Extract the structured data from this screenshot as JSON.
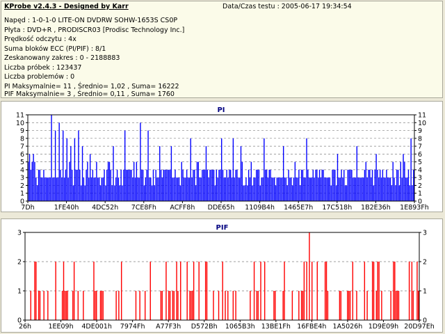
{
  "header": {
    "title": "KProbe v2.4.3 - Designed by Karr",
    "date_label": "Data/Czas testu : 2005-06-17 19:34:54"
  },
  "info_lines": [
    "Napęd : 1-0-1-0 LITE-ON DVDRW SOHW-1653S CS0P",
    "Płyta : DVD+R , PRODISCR03 [Prodisc Technology Inc.]",
    "Prędkość odczytu : 4x",
    "Suma bloków ECC (PI/PIF) : 8/1",
    "Zeskanowany zakres : 0 - 2188883",
    "Liczba próbek : 123437",
    "Liczba problemów : 0",
    "PI Maksymalnie= 11 , Średnio= 1,02 , Suma= 16222",
    "PIF Maksymalnie= 3 , Średnio= 0,11 , Suma= 1760"
  ],
  "colors": {
    "pi": "#0000ff",
    "pif": "#ff0000",
    "frame": "#000000",
    "grid": "#808080"
  },
  "chart_data": [
    {
      "type": "bar",
      "title": "PI",
      "ylim": [
        0,
        11
      ],
      "yticks": [
        0,
        1,
        2,
        3,
        4,
        5,
        6,
        7,
        8,
        9,
        10,
        11
      ],
      "xtick_labels": [
        "7Dh",
        "1FE40h",
        "4DC52h",
        "7CE8Fh",
        "ACFF8h",
        "DDE65h",
        "1109B4h",
        "1465E7h",
        "17C518h",
        "1B2E36h",
        "1E893Fh"
      ],
      "grid": true,
      "base_level": 3,
      "seed": 7,
      "spikes": [
        [
          0.06,
          11
        ],
        [
          0.07,
          9
        ],
        [
          0.08,
          10
        ],
        [
          0.09,
          9
        ],
        [
          0.1,
          8
        ],
        [
          0.11,
          7
        ],
        [
          0.12,
          8
        ],
        [
          0.13,
          9
        ],
        [
          0.14,
          7
        ],
        [
          0.16,
          6
        ],
        [
          0.22,
          7
        ],
        [
          0.25,
          9
        ],
        [
          0.29,
          10
        ],
        [
          0.31,
          9
        ],
        [
          0.34,
          7
        ],
        [
          0.37,
          7
        ],
        [
          0.42,
          8
        ],
        [
          0.46,
          7
        ],
        [
          0.5,
          8
        ],
        [
          0.53,
          8
        ],
        [
          0.55,
          7
        ],
        [
          0.61,
          8
        ],
        [
          0.66,
          7
        ],
        [
          0.72,
          8
        ],
        [
          0.8,
          6
        ],
        [
          0.85,
          7
        ],
        [
          0.9,
          6
        ],
        [
          0.97,
          6
        ],
        [
          0.99,
          8
        ]
      ]
    },
    {
      "type": "bar",
      "title": "PIF",
      "ylim": [
        0,
        3
      ],
      "yticks": [
        0,
        1,
        2,
        3
      ],
      "xtick_labels": [
        "26h",
        "1EE09h",
        "4DE001h",
        "7974Fh",
        "A77F3h",
        "D572Bh",
        "1065B3h",
        "13BE1Fh",
        "16FBE4h",
        "1A5026h",
        "1D9E09h",
        "20D97Eh"
      ],
      "grid": true,
      "max_value": 3,
      "max_position": 0.72,
      "seed": 13
    }
  ]
}
